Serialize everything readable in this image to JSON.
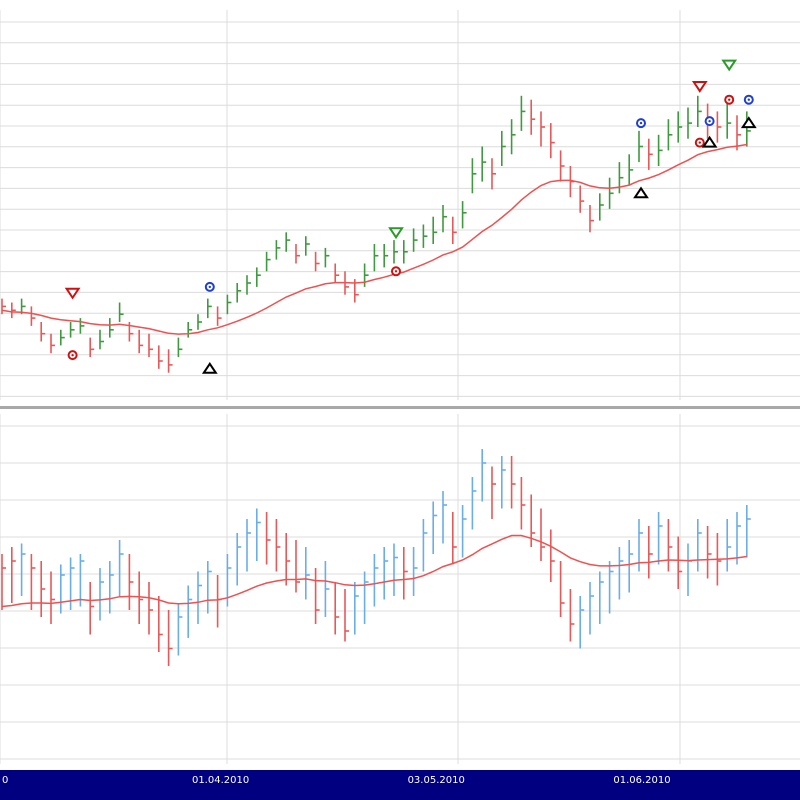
{
  "colors": {
    "background": "#ffffff",
    "grid": "#dcdcdc",
    "separator": "#a8a8a8",
    "axis_bar": "#000080",
    "axis_text": "#ffffff",
    "up_bar": "#3f9a3f",
    "down_bar": "#e85858",
    "ma_line": "#f05050",
    "osc_up": "#6aaee8",
    "osc_down": "#e85858",
    "osc_ma": "#f05050",
    "marker_blue": "#1f3fd0",
    "marker_red": "#d01010",
    "marker_green": "#2a9a2a",
    "marker_black": "#000000"
  },
  "x_axis": {
    "labels": [
      {
        "index": 0,
        "label": "0"
      },
      {
        "index": 22,
        "label": "01.04.2010"
      },
      {
        "index": 44,
        "label": "03.05.2010"
      },
      {
        "index": 65,
        "label": "01.06.2010"
      }
    ]
  },
  "chart_data": [
    {
      "type": "bar",
      "panel": "price",
      "count": 77,
      "ylim": [
        0,
        100
      ],
      "grid": true,
      "series": [
        {
          "kind": "hlc",
          "high": [
            26,
            25,
            26,
            24,
            20,
            17,
            18,
            20,
            21,
            16,
            18,
            21,
            25,
            20,
            18,
            17,
            14,
            13,
            16,
            20,
            22,
            26,
            24,
            27,
            30,
            32,
            34,
            38,
            41,
            43,
            40,
            42,
            38,
            39,
            35,
            33,
            31,
            35,
            40,
            40,
            41,
            41,
            44,
            45,
            47,
            50,
            47,
            51,
            62,
            65,
            62,
            69,
            72,
            78,
            77,
            74,
            71,
            64,
            60,
            55,
            50,
            53,
            57,
            61,
            63,
            69,
            67,
            68,
            72,
            74,
            75,
            78,
            76,
            74,
            76,
            73,
            74
          ],
          "low": [
            22,
            21,
            22,
            19,
            15,
            12,
            14,
            16,
            17,
            11,
            13,
            16,
            20,
            15,
            12,
            11,
            8,
            7,
            11,
            16,
            18,
            21,
            19,
            22,
            25,
            27,
            29,
            33,
            36,
            38,
            35,
            37,
            33,
            34,
            30,
            27,
            25,
            29,
            33,
            34,
            35,
            35,
            38,
            39,
            40,
            43,
            40,
            44,
            53,
            56,
            54,
            60,
            63,
            69,
            68,
            65,
            62,
            56,
            52,
            48,
            43,
            46,
            49,
            53,
            55,
            61,
            59,
            60,
            64,
            66,
            67,
            70,
            67,
            66,
            67,
            64,
            65
          ],
          "close": [
            24,
            23,
            24,
            21,
            17,
            14,
            16,
            18,
            19,
            13,
            15,
            18,
            22,
            17,
            14,
            13,
            10,
            9,
            13,
            18,
            20,
            24,
            21,
            25,
            28,
            30,
            32,
            36,
            39,
            41,
            37,
            40,
            35,
            37,
            32,
            29,
            27,
            32,
            37,
            37,
            38,
            38,
            41,
            42,
            43,
            47,
            43,
            48,
            58,
            61,
            58,
            65,
            68,
            74,
            72,
            70,
            66,
            60,
            56,
            51,
            46,
            50,
            53,
            57,
            59,
            65,
            63,
            64,
            68,
            70,
            71,
            74,
            71,
            70,
            71,
            68,
            69
          ],
          "direction": [
            0,
            0,
            1,
            0,
            0,
            0,
            1,
            1,
            1,
            0,
            1,
            1,
            1,
            0,
            0,
            0,
            0,
            0,
            1,
            1,
            1,
            1,
            0,
            1,
            1,
            1,
            1,
            1,
            1,
            1,
            0,
            1,
            0,
            1,
            0,
            0,
            0,
            1,
            1,
            1,
            1,
            1,
            1,
            1,
            1,
            1,
            0,
            1,
            1,
            1,
            0,
            1,
            1,
            1,
            0,
            0,
            0,
            0,
            0,
            0,
            0,
            1,
            1,
            1,
            1,
            1,
            0,
            1,
            1,
            1,
            1,
            1,
            0,
            0,
            1,
            0,
            1
          ]
        },
        {
          "kind": "moving_average",
          "values": [
            23,
            22.6,
            22.5,
            22.2,
            21.7,
            21,
            20.6,
            20.3,
            20.1,
            19.6,
            19.3,
            19.2,
            19.4,
            19.1,
            18.7,
            18.3,
            17.7,
            17.1,
            16.9,
            17,
            17.3,
            18,
            18.5,
            19.3,
            20.2,
            21.2,
            22.3,
            23.6,
            25,
            26.4,
            27.4,
            28.5,
            29.1,
            29.8,
            30.1,
            30.1,
            30,
            30.2,
            30.9,
            31.5,
            32.2,
            32.8,
            33.8,
            34.8,
            35.9,
            37.2,
            38,
            39.2,
            41.2,
            43.2,
            44.8,
            46.8,
            48.9,
            51.3,
            53.3,
            55,
            56,
            56.3,
            56.3,
            55.8,
            54.9,
            54.4,
            54.3,
            54.6,
            55.1,
            56.2,
            56.9,
            57.8,
            59,
            60.3,
            61.5,
            62.9,
            63.7,
            64.2,
            64.8,
            65.1,
            65.5
          ]
        }
      ],
      "signals": [
        {
          "index": 7,
          "type": "down-triangle",
          "color": "red",
          "value": 27.5
        },
        {
          "index": 7,
          "type": "circle-dot",
          "color": "red",
          "value": 11.5
        },
        {
          "index": 21,
          "type": "circle-dot",
          "color": "blue",
          "value": 29
        },
        {
          "index": 21,
          "type": "up-triangle",
          "color": "black",
          "value": 8
        },
        {
          "index": 40,
          "type": "down-triangle",
          "color": "green",
          "value": 43
        },
        {
          "index": 40,
          "type": "circle-dot",
          "color": "red",
          "value": 33
        },
        {
          "index": 65,
          "type": "circle-dot",
          "color": "blue",
          "value": 71
        },
        {
          "index": 65,
          "type": "up-triangle",
          "color": "black",
          "value": 53
        },
        {
          "index": 71,
          "type": "down-triangle",
          "color": "red",
          "value": 80.5
        },
        {
          "index": 71,
          "type": "circle-dot",
          "color": "red",
          "value": 66
        },
        {
          "index": 72,
          "type": "circle-dot",
          "color": "blue",
          "value": 71.5
        },
        {
          "index": 72,
          "type": "up-triangle",
          "color": "black",
          "value": 66
        },
        {
          "index": 74,
          "type": "down-triangle",
          "color": "green",
          "value": 86
        },
        {
          "index": 74,
          "type": "circle-dot",
          "color": "red",
          "value": 77
        },
        {
          "index": 76,
          "type": "circle-dot",
          "color": "blue",
          "value": 77
        },
        {
          "index": 76,
          "type": "up-triangle",
          "color": "black",
          "value": 71
        }
      ]
    },
    {
      "type": "bar",
      "panel": "oscillator",
      "count": 77,
      "ylim": [
        0,
        100
      ],
      "grid": true,
      "series": [
        {
          "kind": "hlc",
          "high": [
            60,
            62,
            63,
            60,
            58,
            55,
            57,
            59,
            60,
            52,
            56,
            58,
            64,
            60,
            55,
            52,
            48,
            44,
            46,
            51,
            55,
            58,
            54,
            60,
            66,
            70,
            73,
            72,
            70,
            66,
            64,
            62,
            56,
            58,
            52,
            50,
            52,
            55,
            60,
            62,
            63,
            62,
            62,
            70,
            75,
            78,
            72,
            74,
            82,
            90,
            85,
            88,
            88,
            82,
            77,
            73,
            67,
            58,
            50,
            48,
            52,
            55,
            58,
            62,
            64,
            70,
            68,
            72,
            70,
            65,
            63,
            70,
            68,
            66,
            70,
            72,
            74
          ],
          "low": [
            44,
            46,
            48,
            44,
            42,
            40,
            43,
            44,
            45,
            37,
            41,
            43,
            48,
            44,
            40,
            37,
            32,
            28,
            31,
            36,
            40,
            43,
            39,
            45,
            51,
            55,
            58,
            57,
            55,
            51,
            49,
            47,
            40,
            42,
            37,
            35,
            37,
            40,
            45,
            47,
            48,
            47,
            48,
            55,
            60,
            63,
            57,
            59,
            67,
            75,
            70,
            73,
            73,
            67,
            62,
            58,
            52,
            42,
            35,
            33,
            37,
            40,
            43,
            47,
            49,
            55,
            53,
            57,
            55,
            50,
            48,
            55,
            53,
            51,
            55,
            57,
            59
          ],
          "close": [
            56,
            58,
            60,
            56,
            50,
            47,
            54,
            56,
            58,
            45,
            52,
            54,
            60,
            52,
            47,
            44,
            37,
            33,
            42,
            47,
            51,
            55,
            47,
            56,
            62,
            66,
            69,
            64,
            62,
            58,
            52,
            54,
            44,
            50,
            42,
            38,
            48,
            52,
            56,
            58,
            59,
            55,
            56,
            66,
            71,
            74,
            62,
            70,
            78,
            86,
            80,
            84,
            80,
            74,
            66,
            62,
            58,
            46,
            40,
            44,
            48,
            52,
            55,
            58,
            60,
            66,
            60,
            68,
            62,
            55,
            58,
            66,
            60,
            58,
            62,
            68,
            70
          ],
          "direction": [
            0,
            0,
            1,
            0,
            0,
            0,
            1,
            1,
            1,
            0,
            1,
            1,
            1,
            0,
            0,
            0,
            0,
            0,
            1,
            1,
            1,
            1,
            0,
            1,
            1,
            1,
            1,
            0,
            0,
            0,
            0,
            1,
            0,
            1,
            0,
            0,
            1,
            1,
            1,
            1,
            1,
            0,
            1,
            1,
            1,
            1,
            0,
            1,
            1,
            1,
            0,
            1,
            0,
            0,
            0,
            0,
            0,
            0,
            0,
            1,
            1,
            1,
            1,
            1,
            1,
            1,
            0,
            1,
            0,
            0,
            1,
            1,
            0,
            0,
            1,
            1,
            1
          ]
        },
        {
          "kind": "moving_average",
          "values": [
            45,
            45.3,
            45.8,
            46,
            46,
            45.9,
            46.2,
            46.6,
            47,
            46.7,
            46.9,
            47.2,
            47.8,
            47.9,
            47.8,
            47.5,
            46.9,
            46,
            45.8,
            45.9,
            46.2,
            46.8,
            46.9,
            47.5,
            48.5,
            49.6,
            50.8,
            51.7,
            52.3,
            52.7,
            52.7,
            52.9,
            52.4,
            52.3,
            51.8,
            51.2,
            51,
            51.1,
            51.5,
            52,
            52.5,
            52.7,
            53,
            53.8,
            55,
            56.4,
            57.3,
            58.3,
            59.8,
            61.6,
            62.9,
            64.2,
            65.3,
            65.3,
            64.5,
            63.5,
            62.2,
            60.6,
            58.9,
            57.8,
            57,
            56.6,
            56.6,
            56.7,
            57,
            57.5,
            57.6,
            58,
            58.3,
            58.2,
            58.1,
            58.3,
            58.4,
            58.5,
            58.6,
            58.9,
            59.3
          ]
        }
      ]
    }
  ]
}
